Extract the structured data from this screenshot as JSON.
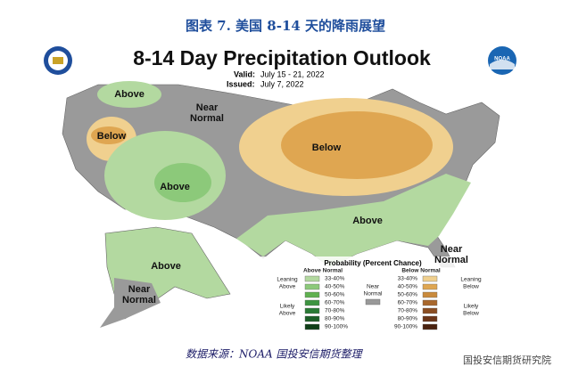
{
  "header": {
    "title": "图表 7. 美国 8-14 天的降雨展望"
  },
  "map": {
    "title": "8-14 Day Precipitation Outlook",
    "valid_label": "Valid:",
    "valid": "July 15 - 21, 2022",
    "issued_label": "Issued:",
    "issued": "July 7, 2022",
    "logo_text": "NOAA",
    "regions": [
      {
        "lines": [
          "Above"
        ]
      },
      {
        "lines": [
          "Near",
          "Normal"
        ]
      },
      {
        "lines": [
          "Below"
        ]
      },
      {
        "lines": [
          "Above"
        ]
      },
      {
        "lines": [
          "Below"
        ]
      },
      {
        "lines": [
          "Above"
        ]
      },
      {
        "lines": [
          "Near",
          "Normal"
        ]
      },
      {
        "lines": [
          "Above"
        ]
      },
      {
        "lines": [
          "Near",
          "Normal"
        ]
      }
    ]
  },
  "legend": {
    "title": "Probability (Percent Chance)",
    "above_title": "Above Normal",
    "below_title": "Below Normal",
    "leaning_above": [
      "Leaning",
      "Above"
    ],
    "likely_above": [
      "Likely",
      "Above"
    ],
    "near": [
      "Near",
      "Normal"
    ],
    "leaning_below": [
      "Leaning",
      "Below"
    ],
    "likely_below": [
      "Likely",
      "Below"
    ],
    "near_color": "#999999",
    "above": [
      {
        "label": "33-40%",
        "color": "#b3d9a0"
      },
      {
        "label": "40-50%",
        "color": "#8cc97a"
      },
      {
        "label": "50-60%",
        "color": "#5fb04f"
      },
      {
        "label": "60-70%",
        "color": "#3d9440"
      },
      {
        "label": "70-80%",
        "color": "#2a7a35"
      },
      {
        "label": "80-90%",
        "color": "#1c5e27"
      },
      {
        "label": "90-100%",
        "color": "#0f3f18"
      }
    ],
    "below": [
      {
        "label": "33-40%",
        "color": "#f0d08f"
      },
      {
        "label": "40-50%",
        "color": "#dfa651"
      },
      {
        "label": "50-60%",
        "color": "#c98a3c"
      },
      {
        "label": "60-70%",
        "color": "#a8672c"
      },
      {
        "label": "70-80%",
        "color": "#8a4d22"
      },
      {
        "label": "80-90%",
        "color": "#6b3518"
      },
      {
        "label": "90-100%",
        "color": "#4a220f"
      }
    ]
  },
  "footer": {
    "source": "数据来源：NOAA   国投安信期货整理",
    "watermark": "国投安信期货研究院"
  }
}
